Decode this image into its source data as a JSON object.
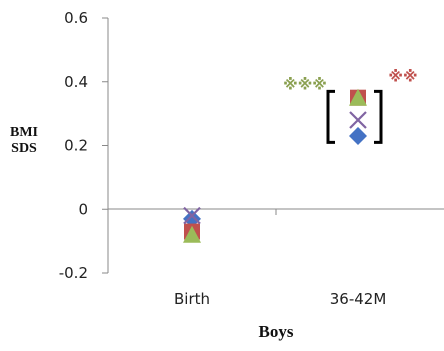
{
  "chart_data": {
    "type": "scatter",
    "xlabel": "Boys",
    "ylabel_lines": [
      "BMI",
      "SDS"
    ],
    "categories": [
      "Birth",
      "36-42M"
    ],
    "ylim": [
      -0.2,
      0.6
    ],
    "yticks": [
      "-0.2",
      "0",
      "0.2",
      "0.4",
      "0.6"
    ],
    "grid": false,
    "legend": "none",
    "series": [
      {
        "marker": "diamond",
        "color": "#4472c4",
        "values": [
          -0.03,
          0.23
        ]
      },
      {
        "marker": "square",
        "color": "#c0504d",
        "values": [
          -0.07,
          0.35
        ]
      },
      {
        "marker": "triangle",
        "color": "#9bbb59",
        "values": [
          -0.08,
          0.35
        ]
      },
      {
        "marker": "x",
        "color": "#8064a2",
        "values": [
          -0.02,
          0.28
        ]
      }
    ],
    "annotations": [
      {
        "text": "※※※",
        "color": "#8aa050",
        "category": "36-42M",
        "y": 0.395
      },
      {
        "text": "※※",
        "color": "#c0504d",
        "category": "36-42M",
        "y": 0.42
      }
    ],
    "bracket": {
      "category": "36-42M",
      "y_low": 0.21,
      "y_high": 0.37
    }
  }
}
